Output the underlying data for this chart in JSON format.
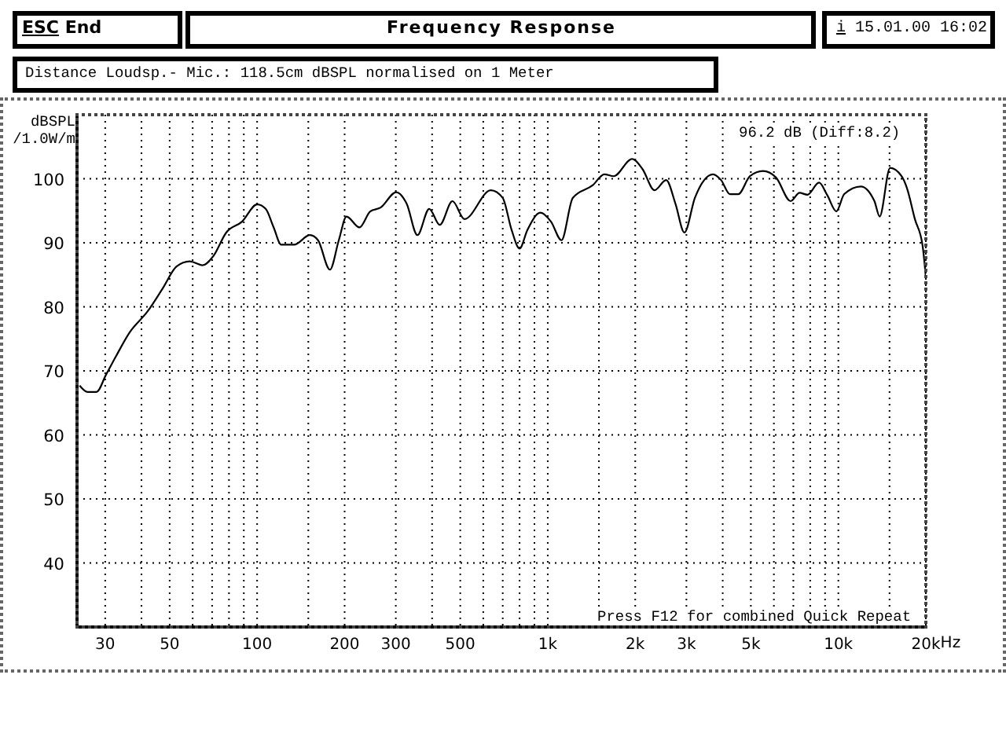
{
  "chart_data": {
    "type": "line",
    "title": "Frequency Response",
    "subtitle": "Distance Loudsp.- Mic.: 118.5cm dBSPL normalised on 1 Meter",
    "xlabel": "Hz",
    "ylabel": "dBSPL\n/1.0W/m",
    "annotations": [
      "ESC End",
      "i 15.01.00 16:02",
      "96.2 dB (Diff:8.2)",
      "Press F12 for combined Quick Repeat"
    ],
    "x": [
      24.5,
      26.1,
      28.0,
      30.2,
      32.7,
      36.4,
      42.0,
      47.5,
      52.8,
      58.6,
      64.9,
      70.6,
      78.3,
      88.7,
      100,
      107,
      114,
      121,
      134,
      152,
      162,
      178,
      191,
      203,
      225,
      245,
      266,
      301,
      327,
      356,
      391,
      425,
      470,
      517,
      637,
      700,
      751,
      800,
      851,
      944,
      1026,
      1115,
      1219,
      1429,
      1566,
      1687,
      1951,
      2119,
      2331,
      2555,
      2751,
      2953,
      3208,
      3707,
      3947,
      4236,
      4527,
      4964,
      5505,
      6100,
      6855,
      7352,
      7826,
      8583,
      9167,
      9843,
      10475,
      11950,
      13310,
      13870,
      15070,
      16500,
      17200,
      18340,
      19500,
      20000
    ],
    "values": [
      67.7,
      66.7,
      66.7,
      69.4,
      72.3,
      76.0,
      79.3,
      83.0,
      86.3,
      87.1,
      86.5,
      87.9,
      91.6,
      93.3,
      96.0,
      95.3,
      92.4,
      89.7,
      89.7,
      91.2,
      90.4,
      85.8,
      90.4,
      94.1,
      92.4,
      94.9,
      95.5,
      97.9,
      96.1,
      91.2,
      95.3,
      92.8,
      96.5,
      93.7,
      98.2,
      97.0,
      92.0,
      89.1,
      92.0,
      94.7,
      93.3,
      90.4,
      97.0,
      99.0,
      100.7,
      100.4,
      103.1,
      101.5,
      98.2,
      99.8,
      96.1,
      91.6,
      97.0,
      100.7,
      99.8,
      97.6,
      97.6,
      100.4,
      101.2,
      100.2,
      96.5,
      97.8,
      97.5,
      99.4,
      97.4,
      94.9,
      97.6,
      98.8,
      96.5,
      94.1,
      101.7,
      100.4,
      98.6,
      93.7,
      89.5,
      84.6
    ],
    "color": "#000000",
    "log": "x",
    "xlim": [
      24,
      20000
    ],
    "xticks": [
      30,
      {
        "value": 40,
        "label": null
      },
      50,
      {
        "value": 60,
        "label": null
      },
      {
        "value": 70,
        "label": null
      },
      {
        "value": 80,
        "label": null
      },
      {
        "value": 90,
        "label": null
      },
      100,
      {
        "value": 150,
        "label": null
      },
      200,
      300,
      {
        "value": 400,
        "label": null
      },
      500,
      {
        "value": 600,
        "label": null
      },
      {
        "value": 700,
        "label": null
      },
      {
        "value": 800,
        "label": null
      },
      {
        "value": 900,
        "label": null
      },
      {
        "value": 1000,
        "label": "1k"
      },
      {
        "value": 1500,
        "label": null
      },
      {
        "value": 2000,
        "label": "2k"
      },
      {
        "value": 3000,
        "label": "3k"
      },
      {
        "value": 4000,
        "label": null
      },
      {
        "value": 5000,
        "label": "5k"
      },
      {
        "value": 6000,
        "label": null
      },
      {
        "value": 7000,
        "label": null
      },
      {
        "value": 8000,
        "label": null
      },
      {
        "value": 9000,
        "label": null
      },
      {
        "value": 10000,
        "label": "10k"
      },
      {
        "value": 15000,
        "label": null
      },
      {
        "value": 20000,
        "label": "20k"
      }
    ],
    "ylim": [
      30,
      110
    ],
    "yticks": [
      40,
      50,
      60,
      70,
      80,
      90,
      100
    ],
    "grid": true
  }
}
